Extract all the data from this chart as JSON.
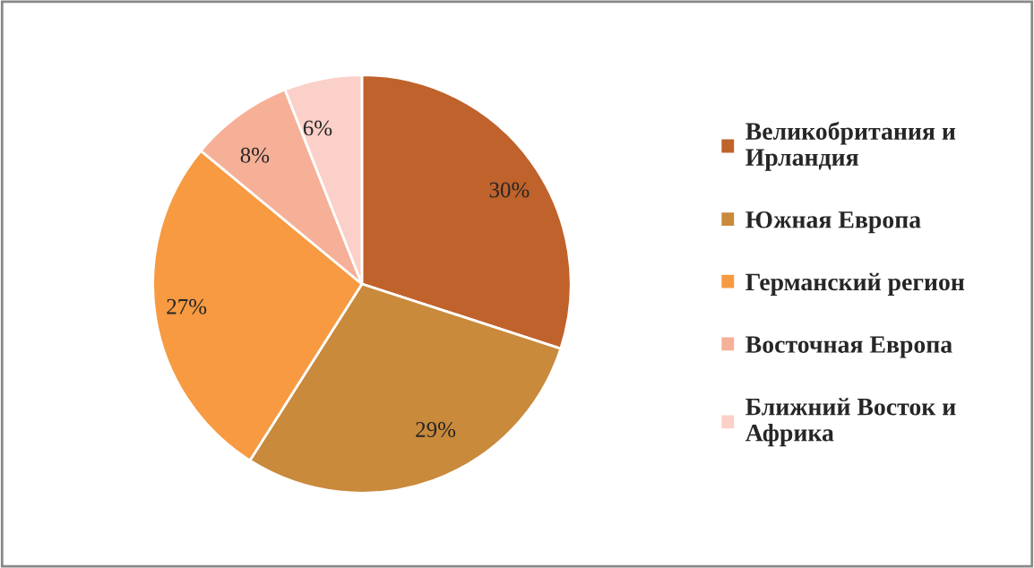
{
  "chart_data": {
    "type": "pie",
    "categories": [
      "Великобритания и Ирландия",
      "Южная Европа",
      "Германский регион",
      "Восточная Европа",
      "Ближний Восток и Африка"
    ],
    "values": [
      30,
      29,
      27,
      8,
      6
    ],
    "value_labels": [
      "30%",
      "29%",
      "27%",
      "8%",
      "6%"
    ],
    "colors": [
      "#c0622b",
      "#c98a3c",
      "#f79a41",
      "#f6b097",
      "#fbd0c8"
    ],
    "legend": "right"
  }
}
